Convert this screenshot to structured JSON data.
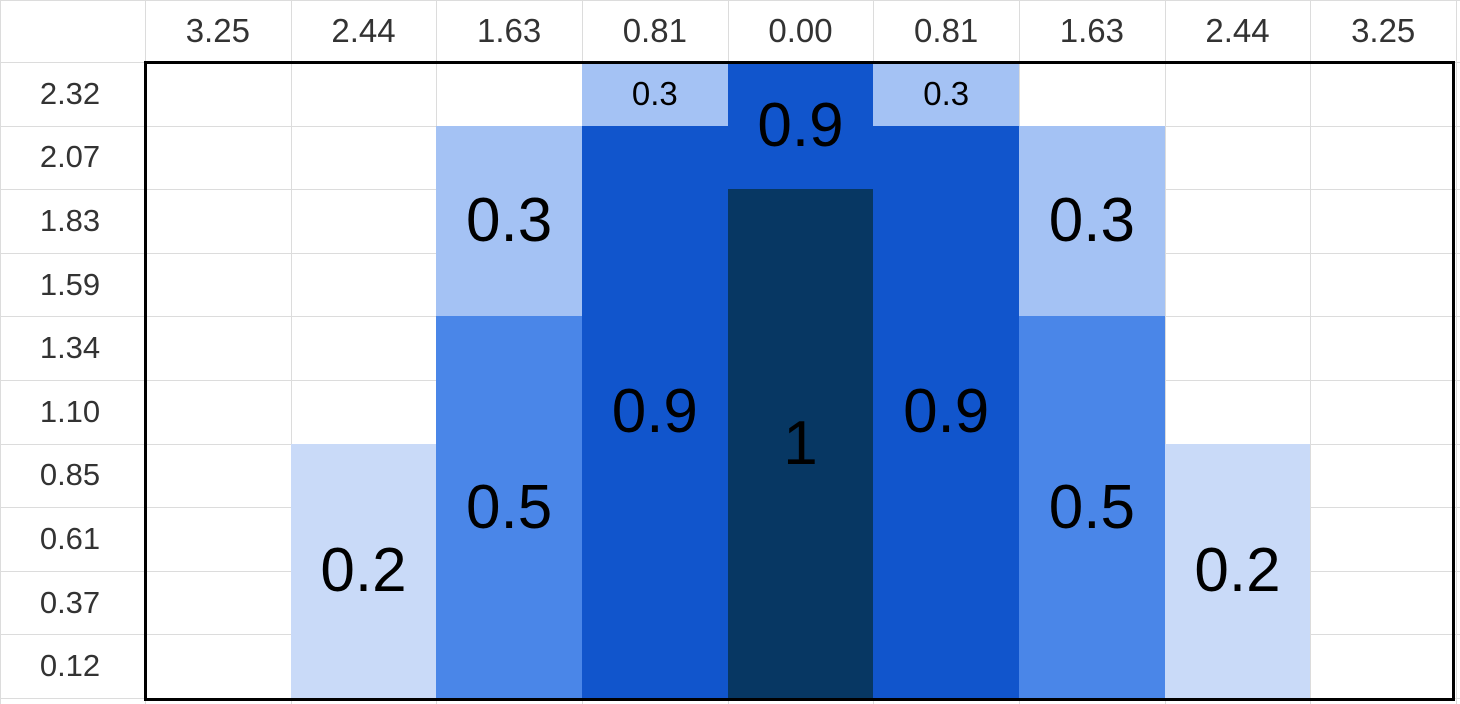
{
  "column_headers": [
    "3.25",
    "2.44",
    "1.63",
    "0.81",
    "0.00",
    "0.81",
    "1.63",
    "2.44",
    "3.25"
  ],
  "row_headers": [
    "2.32",
    "2.07",
    "1.83",
    "1.59",
    "1.34",
    "1.10",
    "0.85",
    "0.61",
    "0.37",
    "0.12"
  ],
  "cells": [
    {
      "value": 0.3,
      "color": "#a4c2f4"
    },
    {
      "value": 0.9,
      "color": "#1155cc"
    },
    {
      "value": 0.3,
      "color": "#a4c2f4"
    },
    {
      "value": 0.3,
      "color": "#a4c2f4"
    },
    {
      "value": 0.3,
      "color": "#a4c2f4"
    },
    {
      "value": 0.9,
      "color": "#1155cc"
    },
    {
      "value": 0.9,
      "color": "#1155cc"
    },
    {
      "value": 1,
      "color": "#073763"
    },
    {
      "value": 0.5,
      "color": "#4a86e8"
    },
    {
      "value": 0.5,
      "color": "#4a86e8"
    },
    {
      "value": 0.2,
      "color": "#c9daf8"
    },
    {
      "value": 0.2,
      "color": "#c9daf8"
    }
  ]
}
